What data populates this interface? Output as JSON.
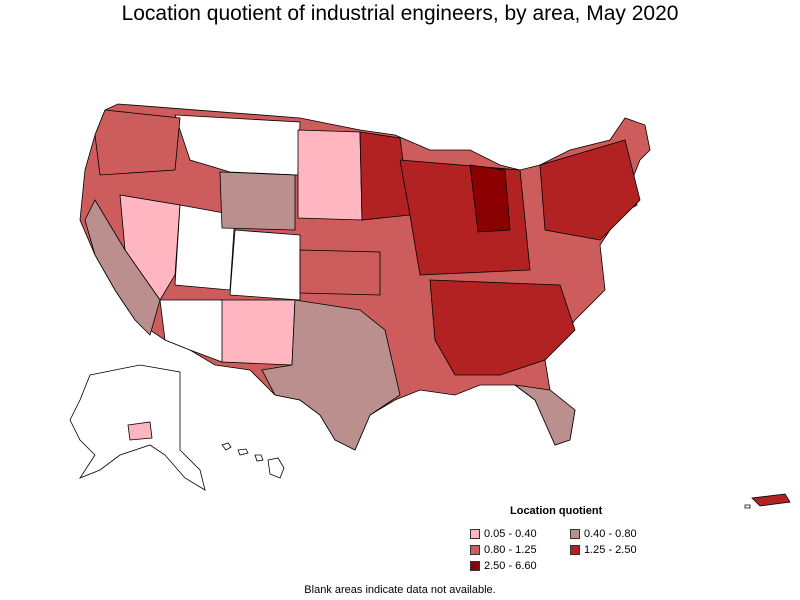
{
  "title": "Location quotient of industrial engineers, by area, May 2020",
  "legend": {
    "title": "Location quotient",
    "items": [
      {
        "label": "0.05 - 0.40",
        "color": "#ffb6c1"
      },
      {
        "label": "0.40 - 0.80",
        "color": "#bc8f8f"
      },
      {
        "label": "0.80 - 1.25",
        "color": "#cd5c5c"
      },
      {
        "label": "1.25 - 2.50",
        "color": "#b22222"
      },
      {
        "label": "2.50 - 6.60",
        "color": "#8b0000"
      }
    ]
  },
  "footnote": "Blank areas indicate data not available.",
  "colors": {
    "no_data": "#ffffff",
    "border": "#000000"
  }
}
